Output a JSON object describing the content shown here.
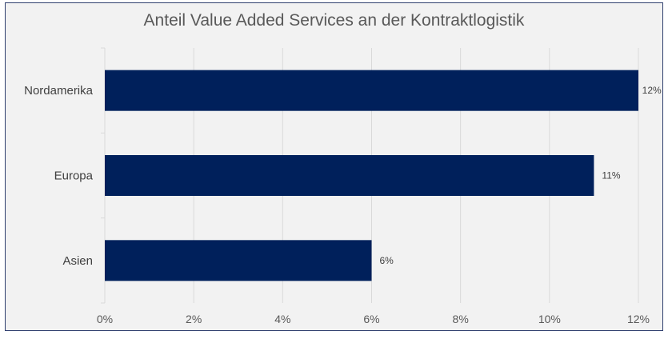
{
  "chart_data": {
    "type": "bar",
    "orientation": "horizontal",
    "title": "Anteil Value Added Services an der Kontraktlogistik",
    "categories": [
      "Nordamerika",
      "Europa",
      "Asien"
    ],
    "values": [
      12,
      11,
      6
    ],
    "data_labels": [
      "12%",
      "11%",
      "6%"
    ],
    "xlim": [
      0,
      12
    ],
    "x_ticks": [
      0,
      2,
      4,
      6,
      8,
      10,
      12
    ],
    "x_tick_labels": [
      "0%",
      "2%",
      "4%",
      "6%",
      "8%",
      "10%",
      "12%"
    ],
    "grid": true,
    "bar_color": "#00205b",
    "gridline_color": "#d9d9d9",
    "background_color": "#f2f2f2"
  }
}
